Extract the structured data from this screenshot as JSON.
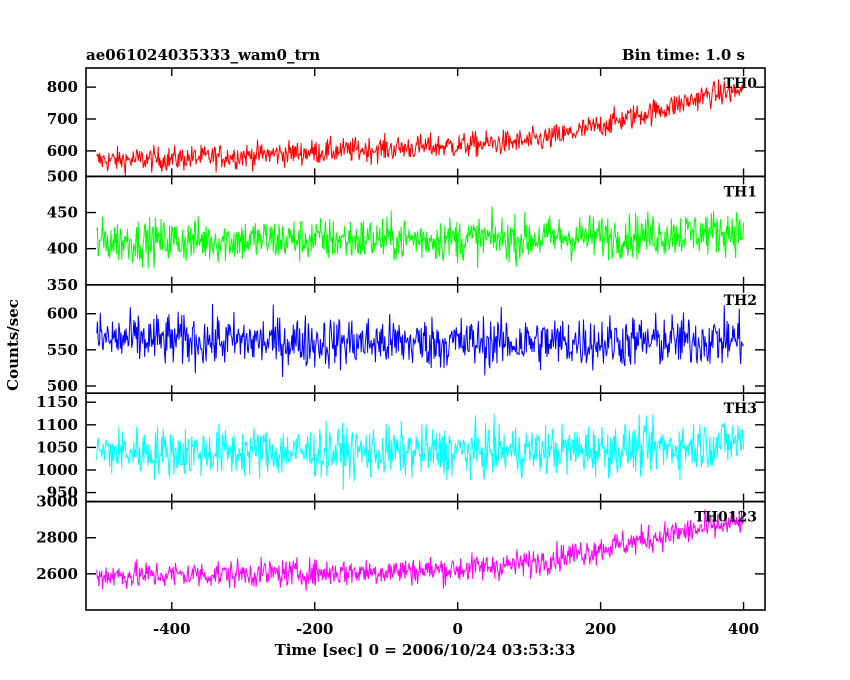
{
  "chart_data": {
    "type": "line",
    "title": "ae061024035333_wam0_trn",
    "subtitle": "Bin time: 1.0 s",
    "xlabel": "Time [sec] 0 = 2006/10/24 03:53:33",
    "ylabel": "Counts/sec",
    "xlim": [
      -505,
      400
    ],
    "x_axis_range": [
      -520,
      430
    ],
    "xticks": [
      -400,
      -200,
      0,
      200,
      400
    ],
    "grid": false,
    "legend": "none",
    "series": [
      {
        "name": "TH0",
        "color": "#ff0000",
        "ylim": [
          520,
          860
        ],
        "yticks": [
          600,
          700,
          800
        ],
        "trend_x": [
          -505,
          -400,
          -300,
          -200,
          -100,
          0,
          100,
          150,
          200,
          300,
          350,
          400
        ],
        "trend_y": [
          570,
          575,
          585,
          597,
          607,
          617,
          630,
          650,
          680,
          740,
          775,
          790
        ],
        "noise": 28
      },
      {
        "name": "TH1",
        "color": "#00ff00",
        "ylim": [
          350,
          500
        ],
        "yticks": [
          350,
          400,
          450,
          500
        ],
        "trend_x": [
          -505,
          -300,
          -100,
          100,
          300,
          400
        ],
        "trend_y": [
          410,
          412,
          413,
          414,
          420,
          425
        ],
        "noise": 22
      },
      {
        "name": "TH2",
        "color": "#0000ff",
        "ylim": [
          490,
          640
        ],
        "yticks": [
          500,
          550,
          600
        ],
        "trend_x": [
          -505,
          -300,
          -100,
          100,
          300,
          400
        ],
        "trend_y": [
          565,
          562,
          560,
          560,
          562,
          565
        ],
        "noise": 26
      },
      {
        "name": "TH3",
        "color": "#00ffff",
        "ylim": [
          930,
          1170
        ],
        "yticks": [
          950,
          1000,
          1050,
          1100,
          1150
        ],
        "trend_x": [
          -505,
          -300,
          -100,
          100,
          300,
          400
        ],
        "trend_y": [
          1040,
          1040,
          1040,
          1042,
          1050,
          1065
        ],
        "noise": 40
      },
      {
        "name": "TH0123",
        "color": "#ff00ff",
        "ylim": [
          2400,
          3000
        ],
        "yticks": [
          2600,
          2800,
          3000
        ],
        "trend_x": [
          -505,
          -400,
          -200,
          0,
          100,
          200,
          300,
          400
        ],
        "trend_y": [
          2590,
          2595,
          2605,
          2625,
          2660,
          2740,
          2820,
          2890
        ],
        "noise": 55
      }
    ]
  }
}
